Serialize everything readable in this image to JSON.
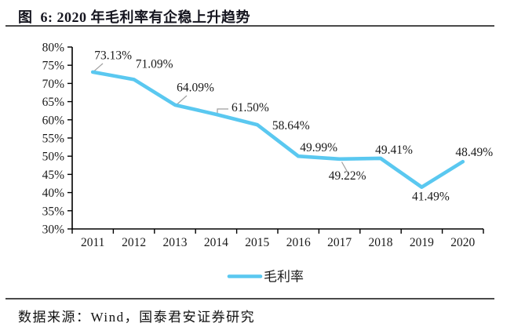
{
  "title": "图  6: 2020 年毛利率有企稳上升趋势",
  "source_note": "数据来源：Wind，国泰君安证券研究",
  "legend": {
    "label": "毛利率"
  },
  "colors": {
    "line": "#5AC8F0",
    "leader": "#9e9e9e",
    "axis": "#000000",
    "text": "#1a1a1a",
    "title": "#15151f",
    "rule": "#4a4a4a"
  },
  "chart_data": {
    "type": "line",
    "categories": [
      "2011",
      "2012",
      "2013",
      "2014",
      "2015",
      "2016",
      "2017",
      "2018",
      "2019",
      "2020"
    ],
    "series": [
      {
        "name": "毛利率",
        "values": [
          73.13,
          71.09,
          64.09,
          61.5,
          58.64,
          49.99,
          49.22,
          49.41,
          41.49,
          48.49
        ]
      }
    ],
    "data_labels": [
      "73.13%",
      "71.09%",
      "64.09%",
      "61.50%",
      "58.64%",
      "49.99%",
      "49.22%",
      "49.41%",
      "41.49%",
      "48.49%"
    ],
    "ylim": [
      30,
      80
    ],
    "ytick_step": 5,
    "ytick_labels": [
      "30%",
      "35%",
      "40%",
      "45%",
      "50%",
      "55%",
      "60%",
      "65%",
      "70%",
      "75%",
      "80%"
    ],
    "grid": false,
    "legend_position": "bottom"
  }
}
